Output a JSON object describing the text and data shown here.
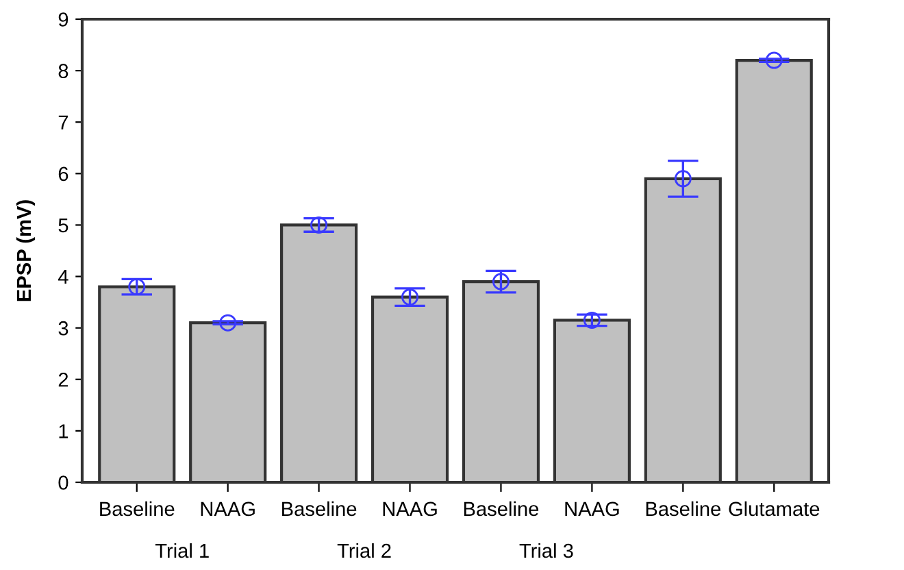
{
  "chart_data": {
    "type": "bar",
    "ylabel": "EPSP (mV)",
    "categories": [
      "Baseline",
      "NAAG",
      "Baseline",
      "NAAG",
      "Baseline",
      "NAAG",
      "Baseline",
      "Glutamate"
    ],
    "series": [
      {
        "color": "#c0c0c0",
        "values": [
          3.8,
          3.1,
          5.0,
          3.6,
          3.9,
          3.15,
          5.9,
          8.2
        ]
      },
      {
        "type": "scatter",
        "color": "#3a3aff",
        "values": [
          3.8,
          3.1,
          5.0,
          3.6,
          3.9,
          3.15,
          5.9,
          8.2
        ],
        "errors": [
          0.15,
          0.03,
          0.13,
          0.17,
          0.21,
          0.11,
          0.35,
          0.03
        ]
      }
    ],
    "marker": "circle",
    "ylim": [
      0,
      9
    ],
    "yticks": [
      0,
      1,
      2,
      3,
      4,
      5,
      6,
      7,
      8,
      9
    ],
    "grid": false,
    "annotations": [
      "Trial 1",
      "Trial 2",
      "Trial 3"
    ]
  }
}
